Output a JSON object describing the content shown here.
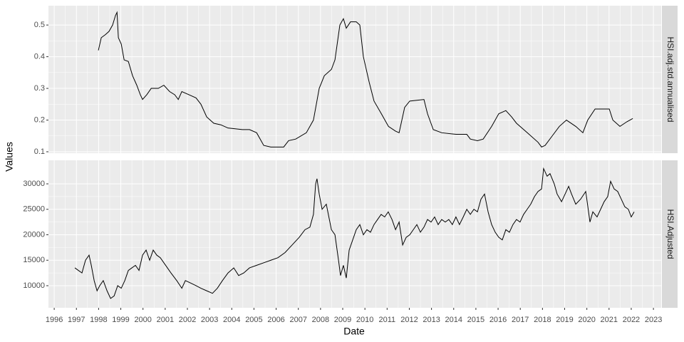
{
  "xlabel": "Date",
  "ylabel": "Values",
  "chart_data": [
    {
      "type": "line",
      "facet": "HSI.adj.std.annualised",
      "color": "#000000",
      "grid": true,
      "xlim": [
        1995.74,
        2023.35
      ],
      "xticks": [
        1996,
        1997,
        1998,
        1999,
        2000,
        2001,
        2002,
        2003,
        2004,
        2005,
        2006,
        2007,
        2008,
        2009,
        2010,
        2011,
        2012,
        2013,
        2014,
        2015,
        2016,
        2017,
        2018,
        2019,
        2020,
        2021,
        2022,
        2023
      ],
      "ylim": [
        0.0955,
        0.561
      ],
      "yticks": [
        0.1,
        0.2,
        0.3,
        0.4,
        0.5
      ],
      "x": [
        1997.99,
        1998.12,
        1998.31,
        1998.47,
        1998.63,
        1998.76,
        1998.83,
        1998.89,
        1999.02,
        1999.15,
        1999.34,
        1999.53,
        1999.72,
        1999.88,
        1999.98,
        2000.17,
        2000.37,
        2000.69,
        2000.94,
        2001.2,
        2001.43,
        2001.59,
        2001.75,
        2002.07,
        2002.39,
        2002.61,
        2002.87,
        2003.19,
        2003.51,
        2003.83,
        2004.48,
        2004.8,
        2005.12,
        2005.44,
        2005.76,
        2006.34,
        2006.56,
        2006.88,
        2007.36,
        2007.68,
        2007.94,
        2008.17,
        2008.49,
        2008.65,
        2008.87,
        2009.03,
        2009.16,
        2009.35,
        2009.61,
        2009.77,
        2009.93,
        2010.19,
        2010.41,
        2010.74,
        2011.06,
        2011.38,
        2011.54,
        2011.79,
        2012.02,
        2012.66,
        2012.82,
        2013.08,
        2013.46,
        2014.11,
        2014.59,
        2014.75,
        2015.07,
        2015.33,
        2015.71,
        2016.03,
        2016.35,
        2016.61,
        2016.83,
        2017.32,
        2017.8,
        2017.96,
        2018.12,
        2018.44,
        2018.76,
        2019.08,
        2019.5,
        2019.82,
        2020.04,
        2020.37,
        2021.01,
        2021.17,
        2021.49,
        2021.81,
        2022.07
      ],
      "values": [
        0.42,
        0.46,
        0.47,
        0.48,
        0.5,
        0.53,
        0.54,
        0.46,
        0.44,
        0.39,
        0.385,
        0.34,
        0.31,
        0.28,
        0.265,
        0.28,
        0.3,
        0.3,
        0.31,
        0.29,
        0.28,
        0.265,
        0.29,
        0.28,
        0.27,
        0.25,
        0.21,
        0.19,
        0.185,
        0.175,
        0.17,
        0.17,
        0.16,
        0.12,
        0.115,
        0.115,
        0.135,
        0.14,
        0.16,
        0.2,
        0.3,
        0.34,
        0.36,
        0.39,
        0.5,
        0.52,
        0.49,
        0.51,
        0.51,
        0.5,
        0.4,
        0.32,
        0.26,
        0.22,
        0.18,
        0.165,
        0.16,
        0.24,
        0.26,
        0.265,
        0.22,
        0.17,
        0.16,
        0.155,
        0.155,
        0.14,
        0.135,
        0.14,
        0.18,
        0.22,
        0.23,
        0.21,
        0.19,
        0.16,
        0.13,
        0.115,
        0.12,
        0.15,
        0.18,
        0.2,
        0.18,
        0.16,
        0.2,
        0.235,
        0.235,
        0.2,
        0.18,
        0.195,
        0.205
      ]
    },
    {
      "type": "line",
      "facet": "HSI.Adjusted",
      "color": "#000000",
      "grid": true,
      "xlim": [
        1995.74,
        2023.35
      ],
      "xticks": [
        1996,
        1997,
        1998,
        1999,
        2000,
        2001,
        2002,
        2003,
        2004,
        2005,
        2006,
        2007,
        2008,
        2009,
        2010,
        2011,
        2012,
        2013,
        2014,
        2015,
        2016,
        2017,
        2018,
        2019,
        2020,
        2021,
        2022,
        2023
      ],
      "ylim": [
        5660,
        34620
      ],
      "yticks": [
        10000,
        15000,
        20000,
        25000,
        30000
      ],
      "x": [
        1996.93,
        1997.09,
        1997.25,
        1997.41,
        1997.57,
        1997.67,
        1997.8,
        1997.93,
        1998.05,
        1998.21,
        1998.38,
        1998.54,
        1998.7,
        1998.86,
        1999.02,
        1999.18,
        1999.34,
        1999.5,
        1999.66,
        1999.82,
        1999.98,
        2000.14,
        2000.3,
        2000.46,
        2000.62,
        2000.78,
        2000.94,
        2001.1,
        2001.26,
        2001.52,
        2001.75,
        2001.91,
        2002.16,
        2002.39,
        2002.61,
        2002.87,
        2003.13,
        2003.35,
        2003.58,
        2003.83,
        2004.09,
        2004.31,
        2004.54,
        2004.8,
        2005.12,
        2005.44,
        2005.76,
        2006.08,
        2006.4,
        2006.72,
        2007.04,
        2007.3,
        2007.52,
        2007.68,
        2007.78,
        2007.84,
        2007.94,
        2008.07,
        2008.26,
        2008.49,
        2008.65,
        2008.81,
        2008.9,
        2009.03,
        2009.16,
        2009.29,
        2009.45,
        2009.61,
        2009.77,
        2009.93,
        2010.09,
        2010.25,
        2010.41,
        2010.57,
        2010.73,
        2010.89,
        2011.05,
        2011.22,
        2011.38,
        2011.54,
        2011.7,
        2011.86,
        2012.02,
        2012.18,
        2012.34,
        2012.5,
        2012.66,
        2012.82,
        2012.98,
        2013.14,
        2013.3,
        2013.46,
        2013.62,
        2013.78,
        2013.94,
        2014.1,
        2014.26,
        2014.43,
        2014.59,
        2014.75,
        2014.91,
        2015.07,
        2015.23,
        2015.39,
        2015.55,
        2015.71,
        2015.87,
        2016.03,
        2016.19,
        2016.35,
        2016.51,
        2016.67,
        2016.83,
        2016.99,
        2017.15,
        2017.31,
        2017.47,
        2017.64,
        2017.8,
        2017.96,
        2018.05,
        2018.21,
        2018.34,
        2018.53,
        2018.66,
        2018.86,
        2019.02,
        2019.18,
        2019.31,
        2019.5,
        2019.72,
        2019.95,
        2020.14,
        2020.27,
        2020.46,
        2020.62,
        2020.78,
        2020.94,
        2021.07,
        2021.23,
        2021.39,
        2021.55,
        2021.71,
        2021.87,
        2022.0,
        2022.13
      ],
      "values": [
        13500,
        13000,
        12500,
        15000,
        16000,
        14000,
        11000,
        9000,
        10000,
        11000,
        9000,
        7500,
        8000,
        10000,
        9500,
        11000,
        13000,
        13500,
        14000,
        13000,
        16000,
        17000,
        15000,
        17000,
        16000,
        15500,
        14500,
        13500,
        12500,
        11000,
        9500,
        11000,
        10500,
        10000,
        9500,
        9000,
        8500,
        9500,
        11000,
        12500,
        13500,
        12000,
        12500,
        13500,
        14000,
        14500,
        15000,
        15500,
        16500,
        18000,
        19500,
        21000,
        21500,
        24000,
        30000,
        31000,
        28000,
        25000,
        26000,
        21000,
        20000,
        15000,
        12000,
        14000,
        11500,
        17000,
        19000,
        21000,
        22000,
        20000,
        21000,
        20500,
        22000,
        23000,
        24000,
        23500,
        24500,
        23000,
        21000,
        22500,
        18000,
        19500,
        20000,
        21000,
        22000,
        20500,
        21500,
        23000,
        22500,
        23500,
        22000,
        23000,
        22500,
        23000,
        22000,
        23500,
        22000,
        23500,
        25000,
        24000,
        25000,
        24500,
        27000,
        28000,
        24500,
        22000,
        20500,
        19500,
        19000,
        21000,
        20500,
        22000,
        23000,
        22500,
        24000,
        25000,
        26000,
        27500,
        28500,
        29000,
        33000,
        31500,
        32000,
        30000,
        28000,
        26500,
        28000,
        29500,
        28000,
        26000,
        27000,
        28500,
        22500,
        24500,
        23500,
        25000,
        26500,
        27500,
        30500,
        29000,
        28500,
        27000,
        25500,
        25000,
        23500,
        24500
      ]
    }
  ]
}
